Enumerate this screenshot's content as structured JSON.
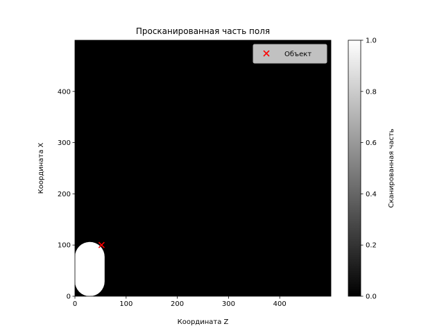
{
  "chart_data": {
    "type": "heatmap",
    "title": "Просканированная часть поля",
    "xlabel": "Координата Z",
    "ylabel": "Координата X",
    "xlim": [
      0,
      500
    ],
    "ylim": [
      0,
      500
    ],
    "x_ticks": [
      0,
      100,
      200,
      300,
      400
    ],
    "y_ticks": [
      0,
      100,
      200,
      300,
      400
    ],
    "grid": false,
    "colormap": "gray",
    "background_value": 0.0,
    "scanned_region": {
      "value": 1.0,
      "shape": "stadium",
      "z_center": 29,
      "x_bottom_center": 29,
      "x_top_center": 77,
      "radius": 29
    },
    "object": {
      "z": 52,
      "x": 100,
      "marker": "x",
      "color": "#ff0000",
      "label": "Объект"
    },
    "legend": {
      "placement": "top-right",
      "entries": [
        "Объект"
      ]
    },
    "colorbar": {
      "label": "Сканированная часть",
      "range": [
        0.0,
        1.0
      ],
      "ticks": [
        "0.0",
        "0.2",
        "0.4",
        "0.6",
        "0.8",
        "1.0"
      ]
    }
  }
}
